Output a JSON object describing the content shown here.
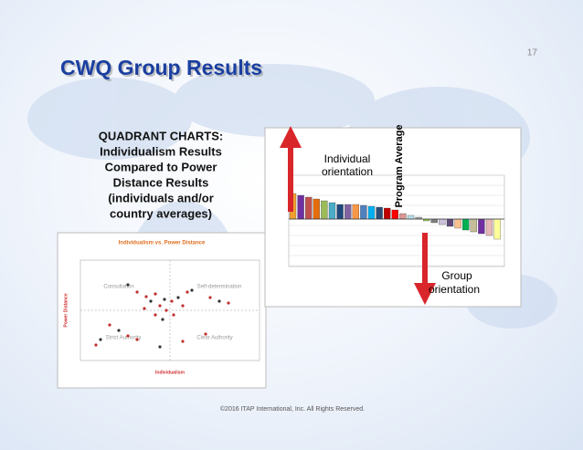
{
  "slide_number": "17",
  "title": "CWQ Group Results",
  "description": [
    "QUADRANT CHARTS:",
    "Individualism Results",
    "Compared to Power",
    "Distance Results",
    "(individuals and/or",
    "country averages)"
  ],
  "scatter_chart": {
    "title": "Individualism vs. Power Distance",
    "x_label": "Individualism",
    "y_label": "Power Distance",
    "quadrants": [
      "Consultation",
      "Self-determination",
      "Strict Authority",
      "Clear Authority"
    ]
  },
  "bar_chart": {
    "annotations": {
      "up": [
        "Individual",
        "orientation"
      ],
      "average": "Program Average",
      "down": [
        "Group",
        "orientation"
      ]
    }
  },
  "footer": "©2016 ITAP International, Inc.   All Rights Reserved."
}
